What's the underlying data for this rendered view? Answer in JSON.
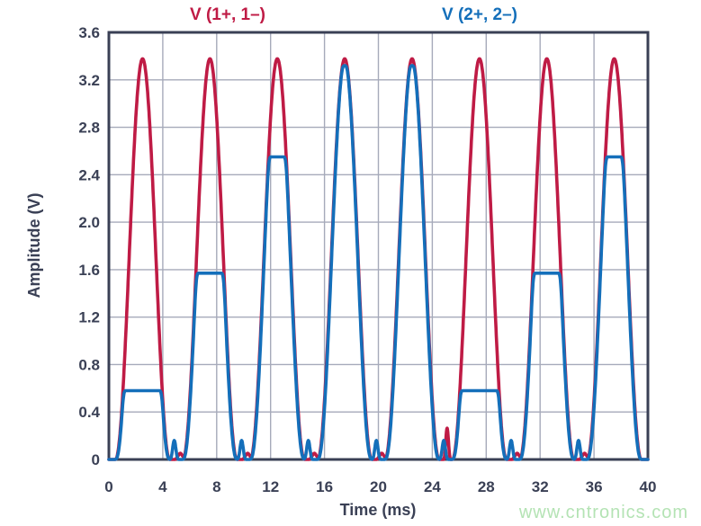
{
  "page": {
    "background": "#ffffff"
  },
  "watermark": {
    "text": "www.cntronics.com",
    "color": "#b4e3b4"
  },
  "chart_data": {
    "type": "line",
    "title": "",
    "xlabel": "Time (ms)",
    "ylabel": "Amplitude (V)",
    "xlim": [
      0,
      40
    ],
    "ylim": [
      0,
      3.6
    ],
    "x_ticks": [
      0,
      4,
      8,
      12,
      16,
      20,
      24,
      28,
      32,
      36,
      40
    ],
    "x_tick_labels": [
      "0",
      "4",
      "8",
      "12",
      "16",
      "20",
      "24",
      "28",
      "32",
      "36",
      "40"
    ],
    "y_ticks": [
      0,
      0.4,
      0.8,
      1.2,
      1.6,
      2.0,
      2.4,
      2.8,
      3.2,
      3.6
    ],
    "y_tick_labels": [
      "0",
      "0.4",
      "0.8",
      "1.2",
      "1.6",
      "2.0",
      "2.4",
      "2.8",
      "3.2",
      "3.6"
    ],
    "grid": {
      "on": true,
      "x_step_ms": 4,
      "y_step_v": 0.4,
      "color": "#a6aaba"
    },
    "axis_color": "#3a4055",
    "legend": {
      "position": "top",
      "entries": [
        {
          "label": "V (1+, 1–)",
          "color": "#bf1b45"
        },
        {
          "label": "V (2+, 2–)",
          "color": "#146fba"
        }
      ]
    },
    "series": [
      {
        "name": "V (1+, 1–)",
        "color": "#bf1b45",
        "line_width": 3.6,
        "waveform": {
          "shape": "raised-cosine-pulse-train",
          "period_ms": 5,
          "first_center_ms": 2.5,
          "num_periods": 8,
          "pulse_centers_ms": [
            2.5,
            7.5,
            12.5,
            17.5,
            22.5,
            27.5,
            32.5,
            37.5
          ],
          "peak_v": 3.38,
          "half_width_ms": 2.0,
          "bumps": [
            {
              "t_ms": 5.3,
              "v": 0.05,
              "halfwidth_ms": 0.35
            },
            {
              "t_ms": 10.3,
              "v": 0.05,
              "halfwidth_ms": 0.35
            },
            {
              "t_ms": 15.25,
              "v": 0.05,
              "halfwidth_ms": 0.35
            },
            {
              "t_ms": 20.25,
              "v": 0.05,
              "halfwidth_ms": 0.35
            },
            {
              "t_ms": 25.1,
              "v": 0.27,
              "halfwidth_ms": 0.2
            },
            {
              "t_ms": 30.3,
              "v": 0.05,
              "halfwidth_ms": 0.35
            },
            {
              "t_ms": 35.3,
              "v": 0.05,
              "halfwidth_ms": 0.35
            }
          ]
        }
      },
      {
        "name": "V (2+, 2–)",
        "color": "#146fba",
        "line_width": 3.6,
        "waveform": {
          "shape": "clipped-raised-cosine-pulse-train",
          "period_ms": 5,
          "first_center_ms": 2.5,
          "num_periods": 8,
          "pulse_centers_ms": [
            2.5,
            7.5,
            12.5,
            17.5,
            22.5,
            27.5,
            32.5,
            37.5
          ],
          "peak_v": 3.38,
          "half_width_ms": 1.95,
          "clip_levels_v": [
            0.58,
            1.57,
            2.55,
            3.32,
            3.32,
            0.58,
            1.57,
            2.55
          ],
          "blips": [
            {
              "t_ms": 4.85,
              "v": 0.16,
              "halfwidth_ms": 0.2
            },
            {
              "t_ms": 9.85,
              "v": 0.16,
              "halfwidth_ms": 0.2
            },
            {
              "t_ms": 14.8,
              "v": 0.16,
              "halfwidth_ms": 0.2
            },
            {
              "t_ms": 19.85,
              "v": 0.16,
              "halfwidth_ms": 0.2
            },
            {
              "t_ms": 24.85,
              "v": 0.16,
              "halfwidth_ms": 0.2
            },
            {
              "t_ms": 29.85,
              "v": 0.16,
              "halfwidth_ms": 0.2
            },
            {
              "t_ms": 34.85,
              "v": 0.16,
              "halfwidth_ms": 0.2
            }
          ]
        }
      }
    ]
  }
}
